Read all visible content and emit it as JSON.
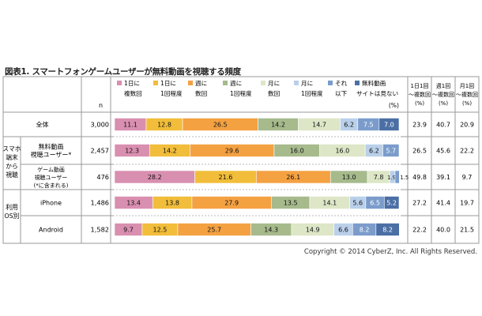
{
  "title": "図表1. スマートフォンゲームユーザーが無料動画を視聴する頻度",
  "copyright": "Copyright © 2014 CyberZ, Inc.  All Rights Reserved.",
  "table": {
    "n_header": "n",
    "pct_unit": "(%)",
    "right_headers": [
      [
        "1日1回",
        "～複数回",
        "(%)"
      ],
      [
        "週1回",
        "～複数回",
        "(%)"
      ],
      [
        "月1回",
        "～複数回",
        "(%)"
      ]
    ],
    "group_labels": [
      [
        "スマホ",
        "端末",
        "から",
        "視聴"
      ],
      [
        "利用",
        "OS別"
      ]
    ],
    "row_labels": [
      [
        "全体"
      ],
      [
        "無料動画",
        "視聴ユーザー*"
      ],
      [
        "ゲーム動画",
        "視聴ユーザー",
        "(*に含まれる)"
      ],
      [
        "iPhone"
      ],
      [
        "Android"
      ]
    ],
    "n_values": [
      "3,000",
      "2,457",
      "476",
      "1,486",
      "1,582"
    ],
    "summary_values": [
      [
        "23.9",
        "40.7",
        "20.9"
      ],
      [
        "26.5",
        "45.6",
        "22.2"
      ],
      [
        "49.8",
        "39.1",
        "9.7"
      ],
      [
        "27.2",
        "41.4",
        "19.7"
      ],
      [
        "22.2",
        "40.0",
        "21.5"
      ]
    ]
  },
  "chart_data": {
    "type": "bar",
    "stacked": true,
    "orientation": "horizontal",
    "xlim": [
      0,
      100
    ],
    "unit": "(%)",
    "categories": [
      "全体",
      "無料動画視聴ユーザー*",
      "ゲーム動画視聴ユーザー(*に含まれる)",
      "iPhone",
      "Android"
    ],
    "series": [
      {
        "name": "1日に複数回",
        "legend": [
          "1日に",
          "複数回"
        ],
        "color": "#d98fb0",
        "values": [
          11.1,
          12.3,
          28.2,
          13.4,
          9.7
        ]
      },
      {
        "name": "1日に1回程度",
        "legend": [
          "1日に",
          "1回程度"
        ],
        "color": "#f1bd3a",
        "values": [
          12.8,
          14.2,
          21.6,
          13.8,
          12.5
        ]
      },
      {
        "name": "週に数回",
        "legend": [
          "週に",
          "数回"
        ],
        "color": "#f4a142",
        "values": [
          26.5,
          29.6,
          26.1,
          27.9,
          25.7
        ]
      },
      {
        "name": "週に1回程度",
        "legend": [
          "週に",
          "1回程度"
        ],
        "color": "#a6ba8c",
        "values": [
          14.2,
          16.0,
          13.0,
          13.5,
          14.3
        ]
      },
      {
        "name": "月に数回",
        "legend": [
          "月に",
          "数回"
        ],
        "color": "#dde6c6",
        "values": [
          14.7,
          16.0,
          7.8,
          14.1,
          14.9
        ]
      },
      {
        "name": "月に1回程度",
        "legend": [
          "月に",
          "1回程度"
        ],
        "color": "#bad0ea",
        "values": [
          6.2,
          6.2,
          1.9,
          5.6,
          6.6
        ]
      },
      {
        "name": "それ以下",
        "legend": [
          "それ",
          "以下"
        ],
        "color": "#7b9ccb",
        "values": [
          7.5,
          5.7,
          1.5,
          6.5,
          8.2
        ]
      },
      {
        "name": "無料動画サイトは見ない",
        "legend": [
          "無料動画",
          "サイトは見ない"
        ],
        "color": "#4b6fa5",
        "values": [
          7.0,
          null,
          null,
          5.2,
          8.2
        ]
      }
    ]
  }
}
